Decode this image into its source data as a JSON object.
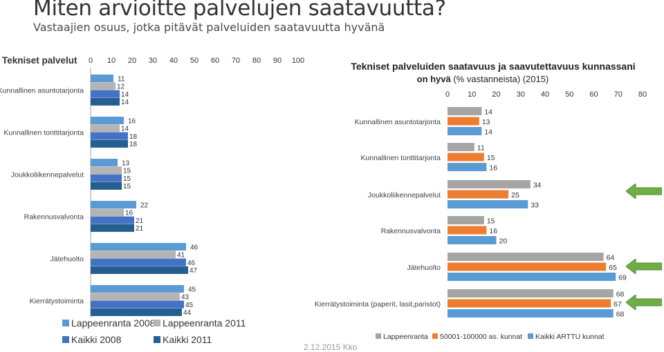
{
  "page": {
    "title": "Miten arvioitte palvelujen saatavuutta?",
    "subtitle": "Vastaajien osuus, jotka pitävät palveluiden saatavuutta hyvänä",
    "date": "2.12.2015 Kko"
  },
  "arrows": {
    "color": "#6fae45",
    "icon": "green-left-arrow-icon",
    "rows": [
      2,
      4,
      5
    ]
  },
  "chart_data": [
    {
      "type": "bar",
      "orientation": "horizontal",
      "title": "Tekniset palvelut",
      "xlim": [
        0,
        100
      ],
      "xticks": [
        0,
        10,
        20,
        30,
        40,
        50,
        60,
        70,
        80,
        90,
        100
      ],
      "categories": [
        "Kunnallinen asuntotarjonta",
        "Kunnallinen tonttitarjonta",
        "Joukkoliikennepalvelut",
        "Rakennusvalvonta",
        "Jätehuolto",
        "Kierrätystoiminta"
      ],
      "series": [
        {
          "name": "Lappeenranta 2008",
          "color": "#5b9bd5",
          "values": [
            11,
            16,
            13,
            22,
            46,
            45
          ]
        },
        {
          "name": "Lappeenranta 2011",
          "color": "#b4b4b4",
          "values": [
            12,
            14,
            15,
            16,
            41,
            43
          ]
        },
        {
          "name": "Kaikki 2008",
          "color": "#4472c4",
          "values": [
            14,
            18,
            15,
            21,
            46,
            45
          ]
        },
        {
          "name": "Kaikki  2011",
          "color": "#255e91",
          "values": [
            14,
            18,
            15,
            21,
            47,
            44
          ]
        }
      ],
      "legend_position": "bottom",
      "grid": false
    },
    {
      "type": "bar",
      "orientation": "horizontal",
      "title": "Tekniset palveluiden saatavuus ja saavutettavuus kunnassani",
      "subtitle_bold": "on hyvä",
      "subtitle_rest": " (% vastanneista) (2015)",
      "xlim": [
        0,
        80
      ],
      "xticks": [
        0,
        10,
        20,
        30,
        40,
        50,
        60,
        70,
        80
      ],
      "categories": [
        "Kunnallinen asuntotarjonta",
        "Kunnallinen tonttitarjonta",
        "Joukkoliikennepalvelut",
        "Rakennusvalvonta",
        "Jätehuolto",
        "Kierrätystoiminta (paperit, lasit,paristot)"
      ],
      "series": [
        {
          "name": "Lappeenranta",
          "color": "#a5a5a5",
          "values": [
            14,
            11,
            34,
            15,
            64,
            68
          ]
        },
        {
          "name": "50001-100000 as. kunnat",
          "color": "#ed7d31",
          "values": [
            13,
            15,
            25,
            16,
            65,
            67
          ]
        },
        {
          "name": "Kaikki ARTTU kunnat",
          "color": "#5b9bd5",
          "values": [
            14,
            16,
            33,
            20,
            69,
            68
          ]
        }
      ],
      "legend_position": "bottom",
      "grid": false
    }
  ]
}
